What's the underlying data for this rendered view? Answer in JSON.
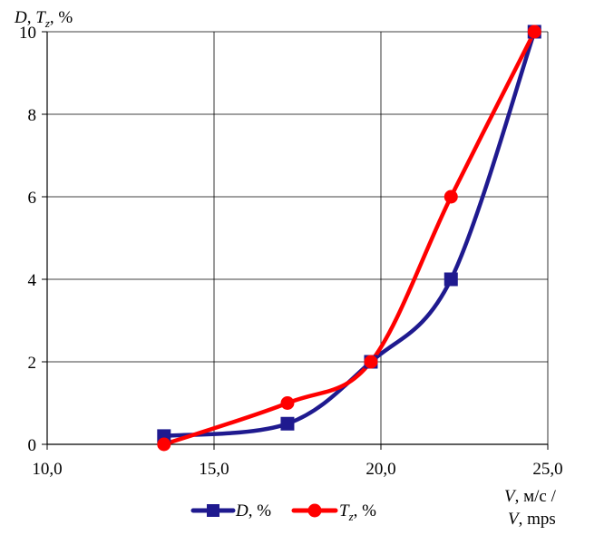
{
  "chart_data": {
    "type": "line",
    "x_axis": {
      "min": 10,
      "max": 25,
      "step": 5,
      "ticks": [
        "10,0",
        "15,0",
        "20,0",
        "25,0"
      ],
      "label": {
        "line1_var": "V",
        "line1_rest": ", м/с /",
        "line2_var": "V",
        "line2_rest": ", mps"
      }
    },
    "y_axis": {
      "min": 0,
      "max": 10,
      "step": 2,
      "ticks": [
        "0",
        "2",
        "4",
        "6",
        "8",
        "10"
      ],
      "label": {
        "var1": "D",
        "sep": ", ",
        "var2": "T",
        "var2_sub": "z",
        "rest": ", %"
      }
    },
    "grid": true,
    "legend_position": "bottom",
    "series": [
      {
        "key": "D",
        "legend_var": "D",
        "legend_sub": "",
        "legend_rest": ", %",
        "color": "#1f1a8f",
        "marker": "square",
        "x": [
          13.5,
          17.2,
          19.7,
          22.1,
          24.6
        ],
        "y": [
          0.2,
          0.5,
          2.0,
          4.0,
          10.0
        ]
      },
      {
        "key": "Tz",
        "legend_var": "T",
        "legend_sub": "z",
        "legend_rest": ", %",
        "color": "#ff0000",
        "marker": "circle",
        "x": [
          13.5,
          17.2,
          19.7,
          22.1,
          24.6
        ],
        "y": [
          0.0,
          1.0,
          2.0,
          6.0,
          10.0
        ]
      }
    ]
  }
}
